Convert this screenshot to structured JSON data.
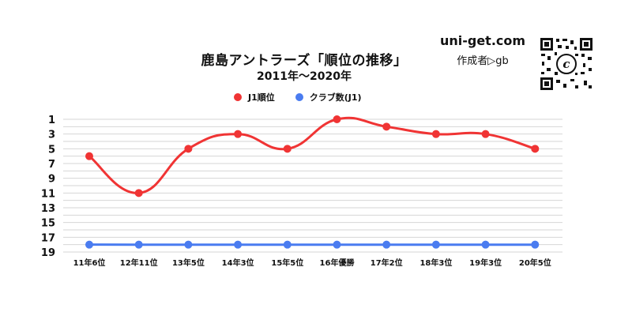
{
  "header": {
    "title": "鹿島アントラーズ「順位の推移」",
    "subtitle": "2011年〜2020年",
    "site": "uni-get.com",
    "author": "作成者▷gb"
  },
  "qr": {
    "icon": "qr-code-icon",
    "center_letter": "c"
  },
  "chart_data": {
    "type": "line",
    "categories": [
      "11年6位",
      "12年11位",
      "13年5位",
      "14年3位",
      "15年5位",
      "16年優勝",
      "17年2位",
      "18年3位",
      "19年3位",
      "20年5位"
    ],
    "series": [
      {
        "name": "J1順位",
        "values": [
          6,
          11,
          5,
          3,
          5,
          1,
          2,
          3,
          3,
          5
        ],
        "color": "#f03434"
      },
      {
        "name": "クラブ数(J1)",
        "values": [
          18,
          18,
          18,
          18,
          18,
          18,
          18,
          18,
          18,
          18
        ],
        "color": "#4a7cf0"
      }
    ],
    "y_inverted": true,
    "ylim": [
      1,
      19
    ],
    "yticks": [
      1,
      3,
      5,
      7,
      9,
      11,
      13,
      15,
      17,
      19
    ],
    "grid": true,
    "legend_position": "top-center"
  }
}
